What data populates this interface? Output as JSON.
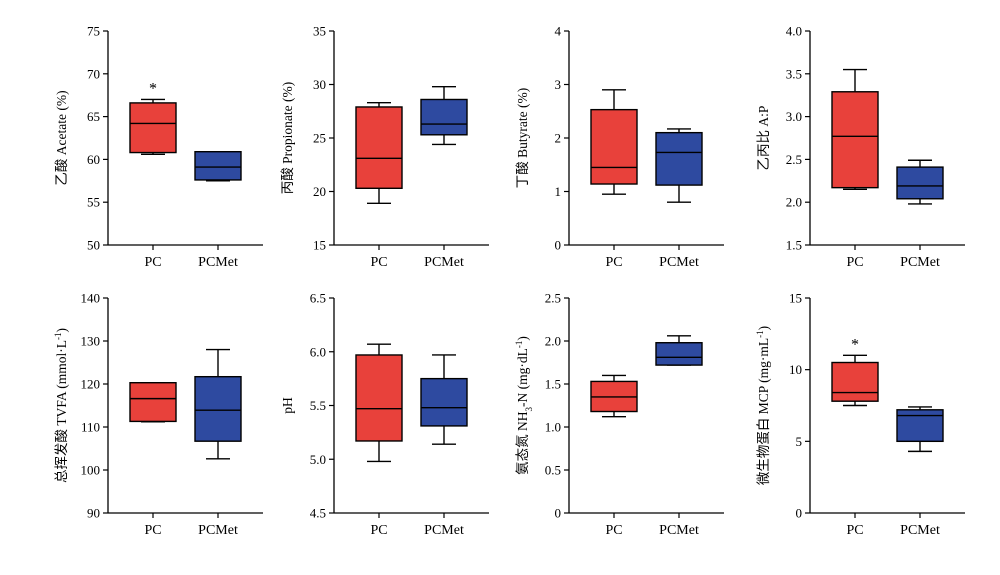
{
  "colors": {
    "PC": "#e8413b",
    "PCMet": "#2e4aa0",
    "line": "#000000"
  },
  "chart_data": [
    {
      "type": "box",
      "ylabel": "乙酸 Acetate (%)",
      "ylim": [
        50,
        75
      ],
      "yticks": [
        "50",
        "55",
        "60",
        "65",
        "70",
        "75"
      ],
      "categories": [
        "PC",
        "PCMet"
      ],
      "boxes": [
        {
          "name": "PC",
          "whisker_low": 60.6,
          "q1": 60.8,
          "median": 64.2,
          "q3": 66.6,
          "whisker_high": 67.0,
          "annotation": "*"
        },
        {
          "name": "PCMet",
          "whisker_low": 57.5,
          "q1": 57.6,
          "median": 59.1,
          "q3": 60.9,
          "whisker_high": 60.9
        }
      ]
    },
    {
      "type": "box",
      "ylabel": "丙酸 Propionate (%)",
      "ylim": [
        15,
        35
      ],
      "yticks": [
        "15",
        "20",
        "25",
        "30",
        "35"
      ],
      "categories": [
        "PC",
        "PCMet"
      ],
      "boxes": [
        {
          "name": "PC",
          "whisker_low": 18.9,
          "q1": 20.3,
          "median": 23.1,
          "q3": 27.9,
          "whisker_high": 28.3
        },
        {
          "name": "PCMet",
          "whisker_low": 24.4,
          "q1": 25.3,
          "median": 26.3,
          "q3": 28.6,
          "whisker_high": 29.8
        }
      ]
    },
    {
      "type": "box",
      "ylabel": "丁酸 Butyrate (%)",
      "ylim": [
        0,
        4
      ],
      "yticks": [
        "0",
        "1",
        "2",
        "3",
        "4"
      ],
      "categories": [
        "PC",
        "PCMet"
      ],
      "boxes": [
        {
          "name": "PC",
          "whisker_low": 0.95,
          "q1": 1.14,
          "median": 1.45,
          "q3": 2.53,
          "whisker_high": 2.9
        },
        {
          "name": "PCMet",
          "whisker_low": 0.8,
          "q1": 1.12,
          "median": 1.73,
          "q3": 2.1,
          "whisker_high": 2.17
        }
      ]
    },
    {
      "type": "box",
      "ylabel": "乙丙比 A:P",
      "ylim": [
        1.5,
        4.0
      ],
      "yticks": [
        "1.5",
        "2.0",
        "2.5",
        "3.0",
        "3.5",
        "4.0"
      ],
      "categories": [
        "PC",
        "PCMet"
      ],
      "boxes": [
        {
          "name": "PC",
          "whisker_low": 2.15,
          "q1": 2.17,
          "median": 2.77,
          "q3": 3.29,
          "whisker_high": 3.55
        },
        {
          "name": "PCMet",
          "whisker_low": 1.98,
          "q1": 2.04,
          "median": 2.19,
          "q3": 2.41,
          "whisker_high": 2.49
        }
      ]
    },
    {
      "type": "box",
      "ylabel": "总挥发酸 TVFA (mmol·L",
      "ylabel_sup": "-1",
      "ylabel_tail": ")",
      "ylim": [
        90,
        140
      ],
      "yticks": [
        "90",
        "100",
        "110",
        "120",
        "130",
        "140"
      ],
      "categories": [
        "PC",
        "PCMet"
      ],
      "boxes": [
        {
          "name": "PC",
          "whisker_low": 111.2,
          "q1": 111.3,
          "median": 116.6,
          "q3": 120.3,
          "whisker_high": 120.3
        },
        {
          "name": "PCMet",
          "whisker_low": 102.6,
          "q1": 106.7,
          "median": 113.9,
          "q3": 121.7,
          "whisker_high": 128.0
        }
      ]
    },
    {
      "type": "box",
      "ylabel": "pH",
      "ylim": [
        4.5,
        6.5
      ],
      "yticks": [
        "4.5",
        "5.0",
        "5.5",
        "6.0",
        "6.5"
      ],
      "categories": [
        "PC",
        "PCMet"
      ],
      "boxes": [
        {
          "name": "PC",
          "whisker_low": 4.98,
          "q1": 5.17,
          "median": 5.47,
          "q3": 5.97,
          "whisker_high": 6.07
        },
        {
          "name": "PCMet",
          "whisker_low": 5.14,
          "q1": 5.31,
          "median": 5.48,
          "q3": 5.75,
          "whisker_high": 5.97
        }
      ]
    },
    {
      "type": "box",
      "ylabel": "氨态氮 NH",
      "ylabel_sub": "3",
      "ylabel_mid": "-N (mg·dL",
      "ylabel_sup": "-1",
      "ylabel_tail": ")",
      "ylim": [
        0,
        2.5
      ],
      "yticks": [
        "0",
        "0.5",
        "1.0",
        "1.5",
        "2.0",
        "2.5"
      ],
      "categories": [
        "PC",
        "PCMet"
      ],
      "boxes": [
        {
          "name": "PC",
          "whisker_low": 1.12,
          "q1": 1.18,
          "median": 1.35,
          "q3": 1.53,
          "whisker_high": 1.6
        },
        {
          "name": "PCMet",
          "whisker_low": 1.72,
          "q1": 1.72,
          "median": 1.81,
          "q3": 1.98,
          "whisker_high": 2.06
        }
      ]
    },
    {
      "type": "box",
      "ylabel": "微生物蛋白 MCP (mg·mL",
      "ylabel_sup": "-1",
      "ylabel_tail": ")",
      "ylim": [
        0,
        15
      ],
      "yticks": [
        "0",
        "5",
        "10",
        "15"
      ],
      "categories": [
        "PC",
        "PCMet"
      ],
      "boxes": [
        {
          "name": "PC",
          "whisker_low": 7.5,
          "q1": 7.8,
          "median": 8.4,
          "q3": 10.5,
          "whisker_high": 11.0,
          "annotation": "*"
        },
        {
          "name": "PCMet",
          "whisker_low": 4.3,
          "q1": 5.0,
          "median": 6.8,
          "q3": 7.2,
          "whisker_high": 7.4
        }
      ]
    }
  ]
}
